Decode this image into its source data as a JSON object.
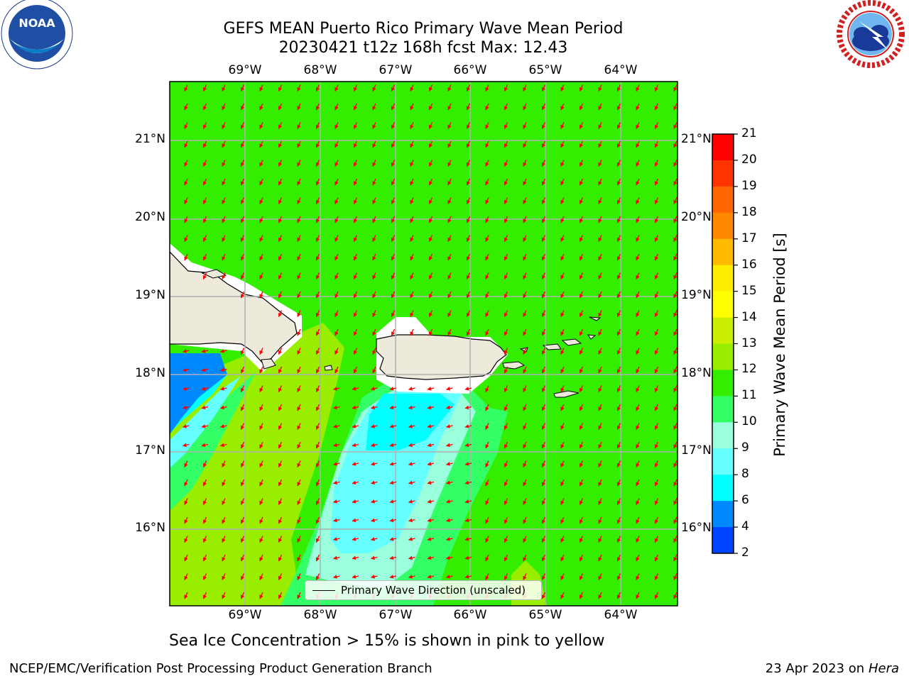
{
  "title": {
    "line1": "GEFS MEAN Puerto Rico Primary Wave Mean Period",
    "line2": "20230421 t12z 168h fcst   Max: 12.43"
  },
  "map": {
    "lon_ticks": [
      "69°W",
      "68°W",
      "67°W",
      "66°W",
      "65°W",
      "64°W"
    ],
    "lat_ticks": [
      "21°N",
      "20°N",
      "19°N",
      "18°N",
      "17°N",
      "16°N"
    ],
    "ocean_color": "#33ee00",
    "land_color": "#eeeadb",
    "arrow_color": "#ff0000",
    "legend_label": "Primary Wave Direction (unscaled)"
  },
  "colorbar": {
    "label": "Primary Wave Mean Period [s]",
    "ticks": [
      "21",
      "20",
      "19",
      "18",
      "17",
      "16",
      "15",
      "14",
      "13",
      "12",
      "11",
      "10",
      "9",
      "8",
      "6",
      "4",
      "2"
    ],
    "colors": [
      "#ff0000",
      "#ff3300",
      "#ff6600",
      "#ff8800",
      "#ffbb00",
      "#ffee00",
      "#ffff00",
      "#ccee00",
      "#99ee00",
      "#33ee00",
      "#33ff66",
      "#99ffdd",
      "#66ffff",
      "#00ffff",
      "#0088ff",
      "#0044ff"
    ]
  },
  "subtitle": "Sea Ice Concentration > 15% is shown in pink to yellow",
  "footer": {
    "left": "NCEP/EMC/Verification Post Processing Product Generation Branch",
    "date": "23 Apr 2023 on ",
    "machine": "Hera"
  },
  "logos": {
    "noaa": "NOAA",
    "noaa_ring": "NATIONAL OCEANIC AND ATMOSPHERIC ADMINISTRATION · U.S. DEPARTMENT OF COMMERCE",
    "nws_ring": "NATIONAL WEATHER SERVICE"
  }
}
